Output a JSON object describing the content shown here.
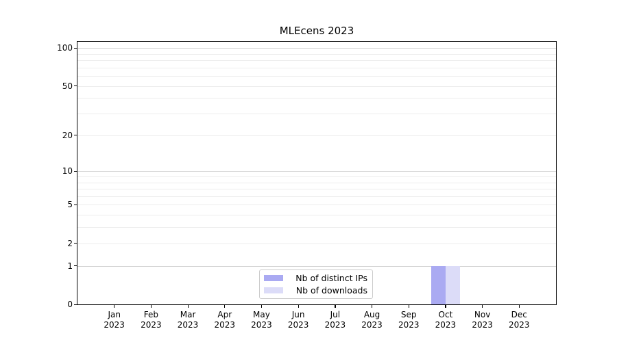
{
  "chart_data": {
    "type": "bar",
    "title": "MLEcens 2023",
    "categories": [
      {
        "month": "Jan",
        "year": "2023"
      },
      {
        "month": "Feb",
        "year": "2023"
      },
      {
        "month": "Mar",
        "year": "2023"
      },
      {
        "month": "Apr",
        "year": "2023"
      },
      {
        "month": "May",
        "year": "2023"
      },
      {
        "month": "Jun",
        "year": "2023"
      },
      {
        "month": "Jul",
        "year": "2023"
      },
      {
        "month": "Aug",
        "year": "2023"
      },
      {
        "month": "Sep",
        "year": "2023"
      },
      {
        "month": "Oct",
        "year": "2023"
      },
      {
        "month": "Nov",
        "year": "2023"
      },
      {
        "month": "Dec",
        "year": "2023"
      }
    ],
    "series": [
      {
        "name": "Nb of distinct IPs",
        "color": "#aaaaf2",
        "values": [
          0,
          0,
          0,
          0,
          0,
          0,
          0,
          0,
          0,
          1,
          0,
          0
        ]
      },
      {
        "name": "Nb of downloads",
        "color": "#dcdcf8",
        "values": [
          0,
          0,
          0,
          0,
          0,
          0,
          0,
          0,
          0,
          1,
          0,
          0
        ]
      }
    ],
    "y_axis": {
      "scale": "log1p",
      "tick_labels": [
        0,
        1,
        2,
        5,
        10,
        20,
        50,
        100
      ],
      "major_gridlines": [
        1,
        10,
        100
      ],
      "minor_gridlines": [
        2,
        3,
        4,
        5,
        6,
        7,
        8,
        9,
        20,
        30,
        40,
        50,
        60,
        70,
        80,
        90
      ],
      "ylim": [
        0,
        112
      ]
    },
    "xlabel": "",
    "ylabel": "",
    "grid": true,
    "legend_position": "lower center",
    "colors": {
      "major_grid": "#d2d2d2",
      "minor_grid": "#ededed",
      "spine": "#000000",
      "background": "#ffffff"
    }
  }
}
